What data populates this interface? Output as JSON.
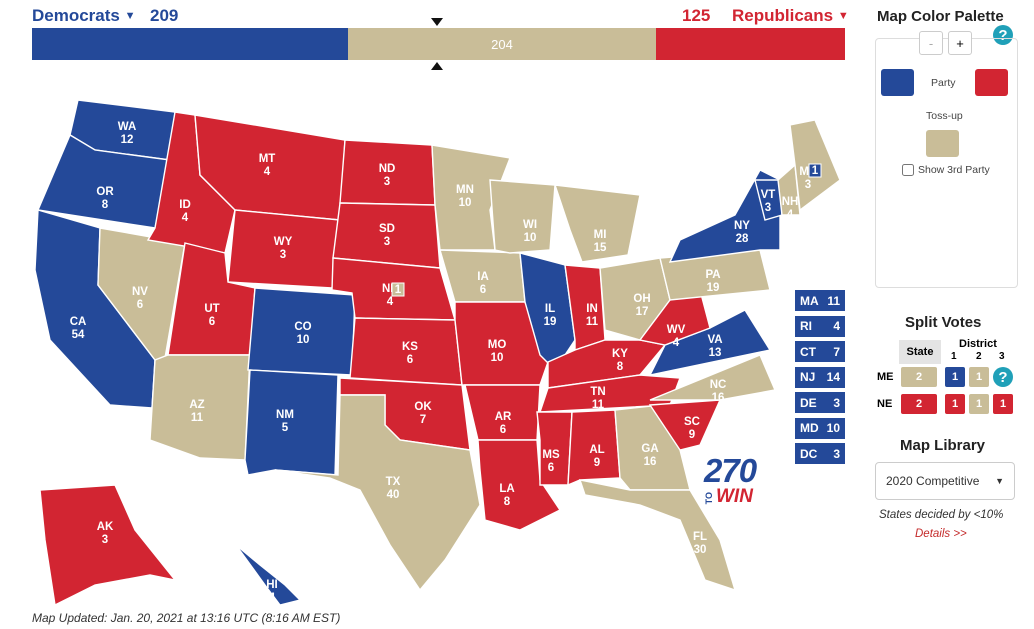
{
  "header": {
    "dem_label": "Democrats",
    "dem_count": "209",
    "rep_count": "125",
    "rep_label": "Republicans",
    "tossup_count": "204"
  },
  "tally": {
    "dem_fraction": 0.3885,
    "tossup_fraction": 0.3792,
    "rep_fraction": 0.2323
  },
  "colors": {
    "dem": "#244999",
    "rep": "#d22532",
    "tossup": "#c9bd98"
  },
  "states": [
    {
      "abbr": "WA",
      "ev": "12",
      "party": "dem"
    },
    {
      "abbr": "OR",
      "ev": "8",
      "party": "dem"
    },
    {
      "abbr": "CA",
      "ev": "54",
      "party": "dem"
    },
    {
      "abbr": "NV",
      "ev": "6",
      "party": "tossup"
    },
    {
      "abbr": "ID",
      "ev": "4",
      "party": "rep"
    },
    {
      "abbr": "MT",
      "ev": "4",
      "party": "rep"
    },
    {
      "abbr": "WY",
      "ev": "3",
      "party": "rep"
    },
    {
      "abbr": "UT",
      "ev": "6",
      "party": "rep"
    },
    {
      "abbr": "AZ",
      "ev": "11",
      "party": "tossup"
    },
    {
      "abbr": "CO",
      "ev": "10",
      "party": "dem"
    },
    {
      "abbr": "NM",
      "ev": "5",
      "party": "dem"
    },
    {
      "abbr": "ND",
      "ev": "3",
      "party": "rep"
    },
    {
      "abbr": "SD",
      "ev": "3",
      "party": "rep"
    },
    {
      "abbr": "NE",
      "ev": "4",
      "party": "rep"
    },
    {
      "abbr": "KS",
      "ev": "6",
      "party": "rep"
    },
    {
      "abbr": "OK",
      "ev": "7",
      "party": "rep"
    },
    {
      "abbr": "TX",
      "ev": "40",
      "party": "tossup"
    },
    {
      "abbr": "MN",
      "ev": "10",
      "party": "tossup"
    },
    {
      "abbr": "IA",
      "ev": "6",
      "party": "tossup"
    },
    {
      "abbr": "MO",
      "ev": "10",
      "party": "rep"
    },
    {
      "abbr": "AR",
      "ev": "6",
      "party": "rep"
    },
    {
      "abbr": "LA",
      "ev": "8",
      "party": "rep"
    },
    {
      "abbr": "WI",
      "ev": "10",
      "party": "tossup"
    },
    {
      "abbr": "IL",
      "ev": "19",
      "party": "dem"
    },
    {
      "abbr": "MI",
      "ev": "15",
      "party": "tossup"
    },
    {
      "abbr": "IN",
      "ev": "11",
      "party": "rep"
    },
    {
      "abbr": "OH",
      "ev": "17",
      "party": "tossup"
    },
    {
      "abbr": "KY",
      "ev": "8",
      "party": "rep"
    },
    {
      "abbr": "TN",
      "ev": "11",
      "party": "rep"
    },
    {
      "abbr": "MS",
      "ev": "6",
      "party": "rep"
    },
    {
      "abbr": "AL",
      "ev": "9",
      "party": "rep"
    },
    {
      "abbr": "GA",
      "ev": "16",
      "party": "tossup"
    },
    {
      "abbr": "FL",
      "ev": "30",
      "party": "tossup"
    },
    {
      "abbr": "SC",
      "ev": "9",
      "party": "rep"
    },
    {
      "abbr": "NC",
      "ev": "16",
      "party": "tossup"
    },
    {
      "abbr": "VA",
      "ev": "13",
      "party": "dem"
    },
    {
      "abbr": "WV",
      "ev": "4",
      "party": "rep"
    },
    {
      "abbr": "PA",
      "ev": "19",
      "party": "tossup"
    },
    {
      "abbr": "NY",
      "ev": "28",
      "party": "dem"
    },
    {
      "abbr": "VT",
      "ev": "3",
      "party": "dem"
    },
    {
      "abbr": "NH",
      "ev": "4",
      "party": "tossup"
    },
    {
      "abbr": "ME",
      "ev": "3",
      "party": "tossup"
    },
    {
      "abbr": "AK",
      "ev": "3",
      "party": "rep"
    },
    {
      "abbr": "HI",
      "ev": "4",
      "party": "dem"
    }
  ],
  "split_ev": {
    "me_district": "1",
    "ne_district": "1"
  },
  "small_states": [
    {
      "abbr": "MA",
      "ev": "11"
    },
    {
      "abbr": "RI",
      "ev": "4"
    },
    {
      "abbr": "CT",
      "ev": "7"
    },
    {
      "abbr": "NJ",
      "ev": "14"
    },
    {
      "abbr": "DE",
      "ev": "3"
    },
    {
      "abbr": "MD",
      "ev": "10"
    },
    {
      "abbr": "DC",
      "ev": "3"
    }
  ],
  "logo": {
    "number": "270",
    "to": "TO",
    "win": "WIN"
  },
  "footer": "Map Updated: Jan. 20, 2021 at 13:16 UTC (8:16 AM EST)",
  "palette": {
    "title": "Map Color Palette",
    "minus": "-",
    "plus": "+",
    "party_label": "Party",
    "tossup_label": "Toss-up",
    "third_party_label": "Show 3rd Party",
    "help": "?"
  },
  "split_votes": {
    "title": "Split Votes",
    "state_header": "State",
    "district_header": "District",
    "district_nums": [
      "1",
      "2",
      "3"
    ],
    "rows": [
      {
        "state": "ME",
        "statewide": "2",
        "d1": "1",
        "d2": "1",
        "d3": ""
      },
      {
        "state": "NE",
        "statewide": "2",
        "d1": "1",
        "d2": "1",
        "d3": "1"
      }
    ]
  },
  "map_library": {
    "title": "Map Library",
    "selected": "2020 Competitive",
    "note": "States decided by <10%",
    "details_link": "Details >>"
  }
}
